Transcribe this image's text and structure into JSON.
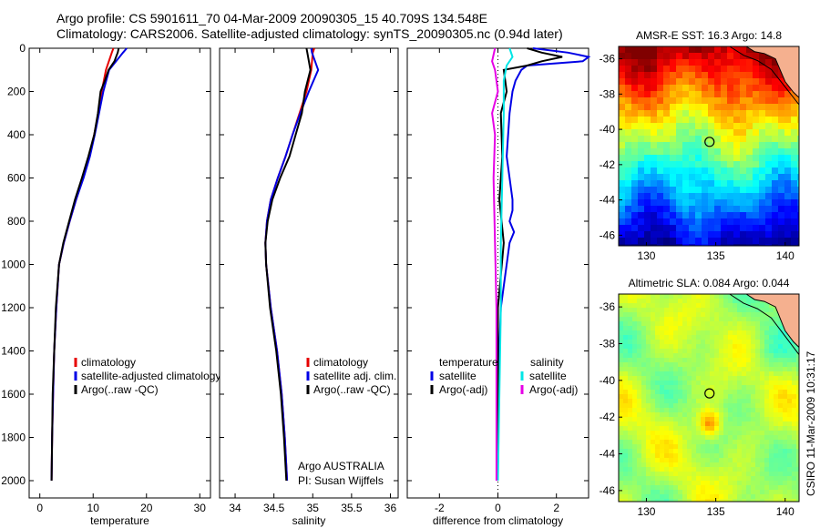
{
  "title": {
    "line1": "Argo profile: CS 5901611_70 04-Mar-2009 20090305_15 40.709S 134.548E",
    "line2": "Climatology: CARS2006. Satellite-adjusted climatology: synTS_20090305.nc (0.94d later)"
  },
  "stamp": "CSIRO 11-Mar-2009 10:31:17",
  "colors": {
    "climatology": "#e60000",
    "satellite": "#0000e6",
    "argo": "#000000",
    "cyan": "#00e6e6",
    "magenta": "#e600e6",
    "land": "#f5b08f"
  },
  "chart_data": [
    {
      "type": "line",
      "xlabel": "temperature",
      "ylabel": "",
      "xlim": [
        -2,
        32
      ],
      "ylim": [
        0,
        2080
      ],
      "y_reversed": true,
      "xticks": [
        0,
        10,
        20,
        30
      ],
      "yticks": [
        0,
        200,
        400,
        600,
        800,
        1000,
        1200,
        1400,
        1600,
        1800,
        2000
      ],
      "series": [
        {
          "name": "climatology",
          "color": "climatology",
          "x": [
            13.8,
            13.5,
            12.4,
            11.6,
            11.0,
            10.2,
            9.3,
            8.1,
            6.8,
            5.6,
            4.5,
            3.6,
            3.1,
            2.7,
            2.5,
            2.3,
            2.2
          ],
          "y": [
            0,
            20,
            100,
            200,
            300,
            400,
            500,
            600,
            700,
            800,
            900,
            1000,
            1200,
            1400,
            1600,
            1800,
            2000
          ]
        },
        {
          "name": "satellite-adjusted climatology",
          "color": "satellite",
          "x": [
            16.3,
            15.6,
            13.0,
            11.9,
            11.1,
            10.3,
            9.4,
            8.2,
            6.8,
            5.6,
            4.5,
            3.6,
            3.1,
            2.7,
            2.5,
            2.3,
            2.2
          ],
          "y": [
            0,
            20,
            100,
            200,
            300,
            400,
            500,
            600,
            700,
            800,
            900,
            1000,
            1200,
            1400,
            1600,
            1800,
            2000
          ]
        },
        {
          "name": "Argo(..raw -QC)",
          "color": "argo",
          "x": [
            14.8,
            14.6,
            14.0,
            12.9,
            12.2,
            11.4,
            10.9,
            10.2,
            9.1,
            7.9,
            6.6,
            5.5,
            4.4,
            3.6,
            3.0,
            2.7,
            2.4,
            2.3,
            2.2
          ],
          "y": [
            0,
            20,
            60,
            100,
            150,
            200,
            300,
            400,
            500,
            600,
            700,
            800,
            900,
            1000,
            1200,
            1400,
            1600,
            1800,
            2000
          ]
        }
      ],
      "legend": [
        "climatology",
        "satellite-adjusted climatology",
        "Argo(..raw -QC)"
      ],
      "legend_placement": "lower-right"
    },
    {
      "type": "line",
      "xlabel": "salinity",
      "xlim": [
        33.8,
        36.1
      ],
      "ylim": [
        0,
        2080
      ],
      "y_reversed": true,
      "xticks": [
        34,
        34.5,
        35,
        35.5,
        36
      ],
      "xticklabels": [
        "34",
        "34.5",
        "35",
        "35.5",
        "36"
      ],
      "series": [
        {
          "name": "climatology",
          "color": "climatology",
          "x": [
            35.02,
            35.0,
            34.98,
            34.92,
            34.83,
            34.74,
            34.65,
            34.55,
            34.46,
            34.41,
            34.39,
            34.4,
            34.46,
            34.54,
            34.6,
            34.64,
            34.67
          ],
          "y": [
            0,
            20,
            100,
            200,
            300,
            400,
            500,
            600,
            700,
            800,
            900,
            1000,
            1200,
            1400,
            1600,
            1800,
            2000
          ]
        },
        {
          "name": "satellite adj. clim.",
          "color": "satellite",
          "x": [
            34.98,
            34.99,
            35.07,
            34.95,
            34.84,
            34.74,
            34.65,
            34.55,
            34.46,
            34.41,
            34.39,
            34.4,
            34.46,
            34.54,
            34.6,
            34.64,
            34.67
          ],
          "y": [
            0,
            20,
            100,
            200,
            300,
            400,
            500,
            600,
            700,
            800,
            900,
            1000,
            1200,
            1400,
            1600,
            1800,
            2000
          ]
        },
        {
          "name": "Argo(..raw -QC)",
          "color": "argo",
          "x": [
            34.92,
            34.93,
            34.97,
            34.9,
            34.86,
            34.78,
            34.7,
            34.58,
            34.48,
            34.42,
            34.39,
            34.4,
            34.45,
            34.53,
            34.59,
            34.63,
            34.66
          ],
          "y": [
            0,
            20,
            100,
            200,
            300,
            400,
            500,
            600,
            700,
            800,
            900,
            1000,
            1200,
            1400,
            1600,
            1800,
            2000
          ]
        }
      ],
      "legend": [
        "climatology",
        "satellite adj. clim.",
        "Argo(..raw -QC)"
      ],
      "legend_placement": "lower-right",
      "annotation": [
        "Argo AUSTRALIA",
        "PI: Susan Wijffels"
      ]
    },
    {
      "type": "line",
      "xlabel": "difference from climatology",
      "xlim": [
        -3.1,
        3.1
      ],
      "ylim": [
        0,
        2080
      ],
      "y_reversed": true,
      "xticks": [
        -2,
        0,
        2
      ],
      "series": [
        {
          "name": "temperature satellite",
          "color": "satellite",
          "x": [
            1.2,
            2.4,
            3.1,
            2.9,
            1.0,
            0.8,
            0.6,
            0.5,
            0.4,
            0.35,
            0.3,
            0.4,
            0.5,
            0.5,
            0.4,
            0.55,
            0.4,
            0.3,
            0.1,
            0.05,
            0.0,
            0.0
          ],
          "y": [
            0,
            20,
            40,
            60,
            80,
            100,
            150,
            200,
            300,
            400,
            500,
            600,
            700,
            750,
            800,
            850,
            900,
            1000,
            1200,
            1400,
            1600,
            2000
          ]
        },
        {
          "name": "temperature Argo(-adj)",
          "color": "argo",
          "x": [
            1.0,
            1.5,
            2.2,
            1.5,
            1.0,
            0.2,
            0.3,
            0.1,
            0.15,
            0.05,
            0.2,
            0.0,
            0.0,
            0.0
          ],
          "y": [
            0,
            20,
            40,
            60,
            80,
            100,
            200,
            300,
            500,
            700,
            900,
            1200,
            1600,
            2000
          ]
        },
        {
          "name": "salinity satellite",
          "color": "cyan",
          "x": [
            0.4,
            0.5,
            0.3,
            0.2,
            0.2,
            0.15,
            0.1,
            0.1,
            0.05,
            0.0
          ],
          "y": [
            0,
            40,
            80,
            150,
            300,
            600,
            900,
            1200,
            1600,
            2000
          ]
        },
        {
          "name": "salinity Argo(-adj)",
          "color": "magenta",
          "x": [
            -0.1,
            -0.2,
            -0.1,
            0.0,
            -0.2,
            -0.1,
            -0.15,
            -0.1,
            -0.05,
            -0.05,
            -0.05
          ],
          "y": [
            0,
            60,
            100,
            200,
            300,
            400,
            600,
            900,
            1200,
            1600,
            2000
          ]
        }
      ],
      "legend_headers": [
        "temperature",
        "salinity"
      ],
      "legend": [
        "satellite",
        "Argo(-adj)",
        "satellite",
        "Argo(-adj)"
      ],
      "legend_placement": "lower-center"
    },
    {
      "type": "heatmap",
      "title": "AMSR-E SST: 16.3 Argo: 14.8",
      "xlim": [
        128,
        141
      ],
      "ylim": [
        -46.6,
        -35.3
      ],
      "xticks": [
        130,
        135,
        140
      ],
      "yticks": [
        -36,
        -38,
        -40,
        -42,
        -44,
        -46
      ],
      "marker": {
        "lon": 134.548,
        "lat": -40.709
      }
    },
    {
      "type": "heatmap",
      "title": "Altimetric SLA: 0.084 Argo: 0.044",
      "xlim": [
        128,
        141
      ],
      "ylim": [
        -46.6,
        -35.3
      ],
      "xticks": [
        130,
        135,
        140
      ],
      "yticks": [
        -36,
        -38,
        -40,
        -42,
        -44,
        -46
      ],
      "marker": {
        "lon": 134.548,
        "lat": -40.709
      }
    }
  ]
}
